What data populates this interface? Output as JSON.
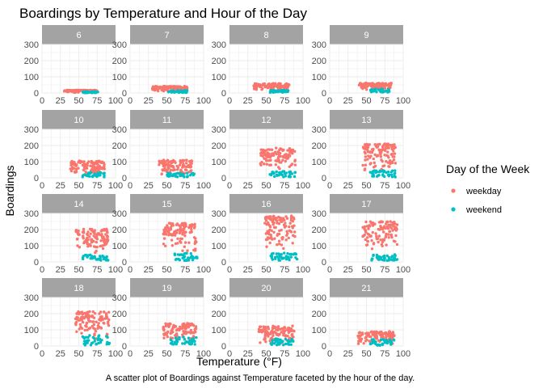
{
  "chart_data": {
    "type": "scatter",
    "title": "Boardings by Temperature and Hour of the Day",
    "caption": "A scatter plot of Boardings against Temperature faceted by the hour of the day.",
    "xlabel": "Temperature (°F)",
    "ylabel": "Boardings",
    "xlim": [
      0,
      100
    ],
    "ylim": [
      0,
      300
    ],
    "x_ticks": [
      0,
      25,
      50,
      75,
      100
    ],
    "y_ticks": [
      0,
      100,
      200,
      300
    ],
    "grid": true,
    "facet_by": "hour",
    "legend": {
      "title": "Day of the Week",
      "placement": "right",
      "entries": [
        {
          "label": "weekday",
          "color": "#F8766D"
        },
        {
          "label": "weekend",
          "color": "#00BFC4"
        }
      ]
    },
    "facets": [
      {
        "hour": "6",
        "weekday": {
          "xmin": 30,
          "xmax": 75,
          "ymin": 2,
          "ymax": 18
        },
        "weekend": {
          "xmin": 55,
          "xmax": 78,
          "ymin": 0,
          "ymax": 8
        }
      },
      {
        "hour": "7",
        "weekday": {
          "xmin": 30,
          "xmax": 78,
          "ymin": 10,
          "ymax": 42
        },
        "weekend": {
          "xmin": 52,
          "xmax": 78,
          "ymin": 2,
          "ymax": 15
        }
      },
      {
        "hour": "8",
        "weekday": {
          "xmin": 33,
          "xmax": 82,
          "ymin": 15,
          "ymax": 60
        },
        "weekend": {
          "xmin": 55,
          "xmax": 80,
          "ymin": 3,
          "ymax": 18
        }
      },
      {
        "hour": "9",
        "weekday": {
          "xmin": 40,
          "xmax": 85,
          "ymin": 20,
          "ymax": 62
        },
        "weekend": {
          "xmin": 55,
          "xmax": 82,
          "ymin": 5,
          "ymax": 25
        }
      },
      {
        "hour": "10",
        "weekday": {
          "xmin": 38,
          "xmax": 85,
          "ymin": 25,
          "ymax": 105
        },
        "weekend": {
          "xmin": 55,
          "xmax": 85,
          "ymin": 5,
          "ymax": 35
        }
      },
      {
        "hour": "11",
        "weekday": {
          "xmin": 38,
          "xmax": 85,
          "ymin": 20,
          "ymax": 110
        },
        "weekend": {
          "xmin": 50,
          "xmax": 88,
          "ymin": 5,
          "ymax": 30
        }
      },
      {
        "hour": "12",
        "weekday": {
          "xmin": 42,
          "xmax": 90,
          "ymin": 40,
          "ymax": 185
        },
        "weekend": {
          "xmin": 55,
          "xmax": 90,
          "ymin": 5,
          "ymax": 40
        }
      },
      {
        "hour": "13",
        "weekday": {
          "xmin": 45,
          "xmax": 90,
          "ymin": 40,
          "ymax": 210
        },
        "weekend": {
          "xmin": 55,
          "xmax": 90,
          "ymin": 5,
          "ymax": 45
        }
      },
      {
        "hour": "14",
        "weekday": {
          "xmin": 45,
          "xmax": 90,
          "ymin": 50,
          "ymax": 205
        },
        "weekend": {
          "xmin": 55,
          "xmax": 90,
          "ymin": 8,
          "ymax": 45
        }
      },
      {
        "hour": "15",
        "weekday": {
          "xmin": 45,
          "xmax": 90,
          "ymin": 60,
          "ymax": 240
        },
        "weekend": {
          "xmin": 55,
          "xmax": 92,
          "ymin": 8,
          "ymax": 55
        }
      },
      {
        "hour": "16",
        "weekday": {
          "xmin": 48,
          "xmax": 90,
          "ymin": 70,
          "ymax": 285
        },
        "weekend": {
          "xmin": 55,
          "xmax": 92,
          "ymin": 8,
          "ymax": 55
        }
      },
      {
        "hour": "17",
        "weekday": {
          "xmin": 45,
          "xmax": 92,
          "ymin": 70,
          "ymax": 250
        },
        "weekend": {
          "xmin": 55,
          "xmax": 92,
          "ymin": 8,
          "ymax": 45
        }
      },
      {
        "hour": "18",
        "weekday": {
          "xmin": 45,
          "xmax": 92,
          "ymin": 40,
          "ymax": 215
        },
        "weekend": {
          "xmin": 55,
          "xmax": 92,
          "ymin": 5,
          "ymax": 65
        }
      },
      {
        "hour": "19",
        "weekday": {
          "xmin": 45,
          "xmax": 90,
          "ymin": 30,
          "ymax": 140
        },
        "weekend": {
          "xmin": 55,
          "xmax": 90,
          "ymin": 5,
          "ymax": 55
        }
      },
      {
        "hour": "20",
        "weekday": {
          "xmin": 40,
          "xmax": 88,
          "ymin": 15,
          "ymax": 125
        },
        "weekend": {
          "xmin": 55,
          "xmax": 88,
          "ymin": 5,
          "ymax": 45
        }
      },
      {
        "hour": "21",
        "weekday": {
          "xmin": 38,
          "xmax": 88,
          "ymin": 10,
          "ymax": 90
        },
        "weekend": {
          "xmin": 55,
          "xmax": 88,
          "ymin": 3,
          "ymax": 40
        }
      }
    ]
  }
}
